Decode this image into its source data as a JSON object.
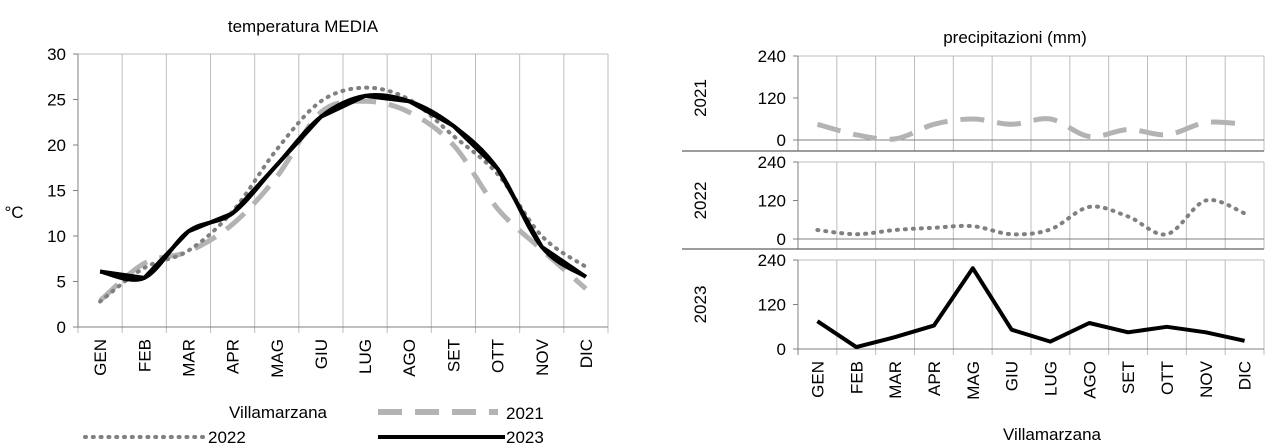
{
  "chart_data": [
    {
      "type": "line",
      "title": "temperatura MEDIA",
      "ylabel": "°C",
      "xlabel": "",
      "categories": [
        "GEN",
        "FEB",
        "MAR",
        "APR",
        "MAG",
        "GIU",
        "LUG",
        "AGO",
        "SET",
        "OTT",
        "NOV",
        "DIC"
      ],
      "ylim": [
        0,
        30
      ],
      "yticks": [
        "0",
        "5",
        "10",
        "15",
        "20",
        "25",
        "30"
      ],
      "grid": "vertical",
      "legend_title": "Villamarzana",
      "legend_position": "bottom",
      "series": [
        {
          "name": "2021",
          "style": "dashed",
          "color": "#b3b3b3",
          "values": [
            2.9,
            7.0,
            8.3,
            11.3,
            16.5,
            23.6,
            24.8,
            23.6,
            20.0,
            13.0,
            8.5,
            4.2
          ]
        },
        {
          "name": "2022",
          "style": "dotted",
          "color": "#808080",
          "values": [
            2.8,
            6.5,
            8.4,
            12.7,
            19.5,
            24.8,
            26.3,
            25.0,
            21.0,
            16.8,
            10.0,
            6.6
          ]
        },
        {
          "name": "2023",
          "style": "solid",
          "color": "#000000",
          "values": [
            6.1,
            5.4,
            10.5,
            12.5,
            17.8,
            23.1,
            25.4,
            24.8,
            22.1,
            17.4,
            8.8,
            5.5
          ]
        }
      ]
    },
    {
      "type": "line",
      "title": "precipitazioni (mm)",
      "xlabel": "Villamarzana",
      "categories": [
        "GEN",
        "FEB",
        "MAR",
        "APR",
        "MAG",
        "GIU",
        "LUG",
        "AGO",
        "SET",
        "OTT",
        "NOV",
        "DIC"
      ],
      "ylim": [
        0,
        240
      ],
      "yticks": [
        "0",
        "120",
        "240"
      ],
      "grid": "vertical",
      "panels": [
        {
          "label": "2021",
          "style": "dashed",
          "color": "#b3b3b3",
          "values": [
            45,
            15,
            3,
            45,
            60,
            45,
            60,
            10,
            30,
            15,
            50,
            45
          ]
        },
        {
          "label": "2022",
          "style": "dotted",
          "color": "#808080",
          "values": [
            28,
            15,
            28,
            35,
            40,
            15,
            30,
            100,
            70,
            15,
            120,
            80
          ]
        },
        {
          "label": "2023",
          "style": "solid",
          "color": "#000000",
          "values": [
            75,
            5,
            32,
            63,
            218,
            52,
            20,
            70,
            45,
            60,
            45,
            22
          ]
        }
      ]
    }
  ]
}
